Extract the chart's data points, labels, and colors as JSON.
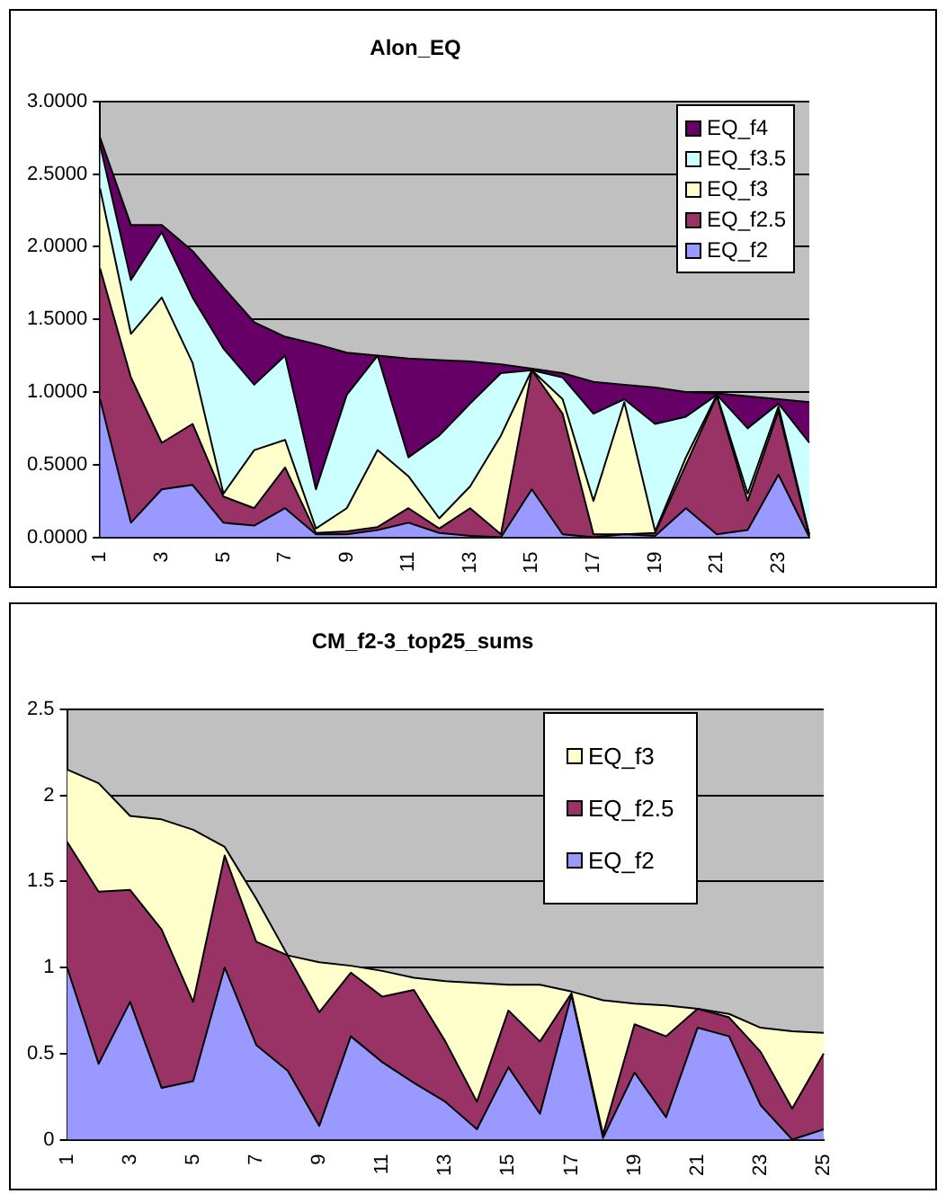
{
  "chart_data": [
    {
      "type": "area",
      "title": "Alon_EQ",
      "stacked": true,
      "grid": "y",
      "legend": "top right",
      "categories": [
        "1",
        null,
        "3",
        null,
        "5",
        null,
        "7",
        null,
        "9",
        null,
        "11",
        null,
        "13",
        null,
        "15",
        null,
        "17",
        null,
        "19",
        null,
        "21",
        null,
        "23",
        null
      ],
      "ylim": [
        0,
        3
      ],
      "yticks": [
        {
          "value": 0,
          "label": "0.0000"
        },
        {
          "value": 0.5,
          "label": "0.5000"
        },
        {
          "value": 1,
          "label": "1.0000"
        },
        {
          "value": 1.5,
          "label": "1.5000"
        },
        {
          "value": 2,
          "label": "2.0000"
        },
        {
          "value": 2.5,
          "label": "2.5000"
        },
        {
          "value": 3,
          "label": "3.0000"
        }
      ],
      "series": [
        {
          "name": "EQ_f2",
          "color": "#9999ff",
          "values": [
            0.95,
            0.1,
            0.33,
            0.36,
            0.1,
            0.08,
            0.2,
            0.02,
            0.02,
            0.05,
            0.1,
            0.03,
            0.01,
            0,
            0.33,
            0.02,
            0,
            0.02,
            0.01,
            0.2,
            0.02,
            0.05,
            0.43,
            0
          ]
        },
        {
          "name": "EQ_f2.5",
          "color": "#993366",
          "values": [
            0.9,
            1.0,
            0.32,
            0.42,
            0.18,
            0.12,
            0.28,
            0.01,
            0.02,
            0.02,
            0.1,
            0.03,
            0.19,
            0.02,
            0.82,
            0.83,
            0.02,
            0,
            0.02,
            0.3,
            0.95,
            0.2,
            0.44,
            0.01
          ]
        },
        {
          "name": "EQ_f3",
          "color": "#ffffcc",
          "values": [
            0.55,
            0.3,
            1.0,
            0.42,
            0.02,
            0.4,
            0.19,
            0.03,
            0.16,
            0.53,
            0.22,
            0.07,
            0.15,
            0.68,
            0,
            0.1,
            0.23,
            0.91,
            0.01,
            0.05,
            0.01,
            0.05,
            0.03,
            0.01
          ]
        },
        {
          "name": "EQ_f3.5",
          "color": "#ccffff",
          "values": [
            0.3,
            0.37,
            0.45,
            0.45,
            1.0,
            0.45,
            0.58,
            0.27,
            0.78,
            0.65,
            0.13,
            0.57,
            0.57,
            0.43,
            0,
            0.15,
            0.6,
            0.02,
            0.74,
            0.28,
            0,
            0.45,
            0.02,
            0.63
          ]
        },
        {
          "name": "EQ_f4",
          "color": "#660066",
          "values": [
            0.05,
            0.38,
            0.05,
            0.32,
            0.42,
            0.43,
            0.13,
            1.0,
            0.29,
            0,
            0.68,
            0.52,
            0.29,
            0.06,
            0.01,
            0.03,
            0.22,
            0.1,
            0.25,
            0.17,
            0.01,
            0.22,
            0.03,
            0.28
          ]
        }
      ]
    },
    {
      "type": "area",
      "title": "CM_f2-3_top25_sums",
      "stacked": true,
      "grid": "y",
      "legend": "top right",
      "categories": [
        "1",
        null,
        "3",
        null,
        "5",
        null,
        "7",
        null,
        "9",
        null,
        "11",
        null,
        "13",
        null,
        "15",
        null,
        "17",
        null,
        "19",
        null,
        "21",
        null,
        "23",
        null,
        "25"
      ],
      "ylim": [
        0,
        2.5
      ],
      "yticks": [
        0,
        0.5,
        1,
        1.5,
        2,
        2.5
      ],
      "series": [
        {
          "name": "EQ_f2",
          "color": "#9999ff",
          "values": [
            1.0,
            0.44,
            0.8,
            0.3,
            0.34,
            1.0,
            0.55,
            0.4,
            0.08,
            0.6,
            0.45,
            0.33,
            0.22,
            0.06,
            0.42,
            0.15,
            0.84,
            0.01,
            0.39,
            0.13,
            0.65,
            0.6,
            0.2,
            0,
            0.06
          ]
        },
        {
          "name": "EQ_f2.5",
          "color": "#993366",
          "values": [
            0.73,
            1.0,
            0.65,
            0.92,
            0.46,
            0.65,
            0.6,
            0.67,
            0.66,
            0.37,
            0.38,
            0.54,
            0.35,
            0.16,
            0.33,
            0.42,
            0.01,
            0.02,
            0.28,
            0.47,
            0.11,
            0.11,
            0.31,
            0.18,
            0.44
          ]
        },
        {
          "name": "EQ_f3",
          "color": "#ffffcc",
          "values": [
            0.42,
            0.63,
            0.43,
            0.64,
            1.0,
            0.05,
            0.25,
            0,
            0.29,
            0.04,
            0.15,
            0.07,
            0.35,
            0.69,
            0.15,
            0.33,
            0.01,
            0.78,
            0.12,
            0.18,
            0,
            0.02,
            0.14,
            0.45,
            0.12
          ]
        }
      ]
    }
  ]
}
